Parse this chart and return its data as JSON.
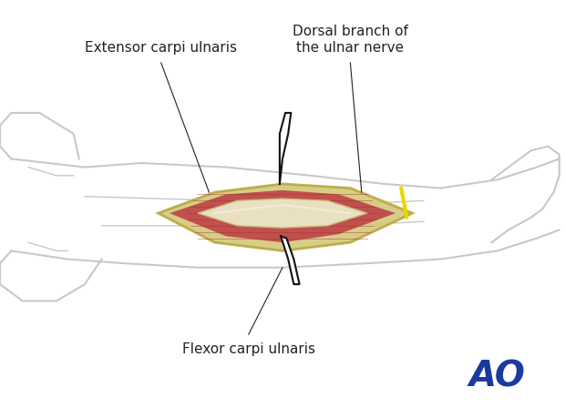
{
  "bg_color": "#ffffff",
  "arm_color": "#c8c8c8",
  "arm_linewidth": 1.5,
  "muscle_red": "#c0504d",
  "muscle_red_light": "#d4736f",
  "tendon_color": "#e8e0c0",
  "fascia_color": "#d4c87a",
  "fascia_outline": "#b8a840",
  "nerve_yellow": "#e8d800",
  "skin_edge_color": "#b8a840",
  "incision_color": "#1a1a1a",
  "label_fontsize": 11,
  "label_color": "#222222",
  "ao_color": "#1a3a9e",
  "ao_fontsize": 28,
  "labels": {
    "extensor": "Extensor carpi ulnaris",
    "dorsal": "Dorsal branch of\nthe ulnar nerve",
    "flexor": "Flexor carpi ulnaris"
  },
  "label_positions": {
    "extensor": [
      0.285,
      0.87
    ],
    "dorsal": [
      0.62,
      0.87
    ],
    "flexor": [
      0.44,
      0.18
    ]
  },
  "line_ends": {
    "extensor": [
      0.37,
      0.54
    ],
    "dorsal": [
      0.64,
      0.54
    ],
    "flexor": [
      0.5,
      0.36
    ]
  }
}
